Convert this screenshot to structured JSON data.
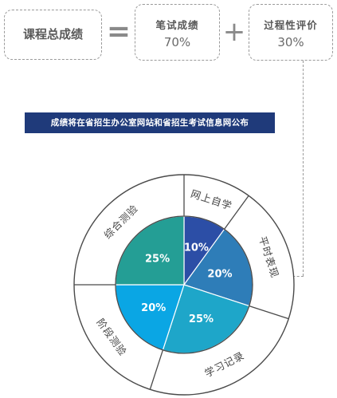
{
  "formula": {
    "total_label": "课程总成绩",
    "equals_sign": "=",
    "plus_sign": "+",
    "written": {
      "label": "笔试成绩",
      "value": "70%"
    },
    "usual": {
      "label": "过程性评价",
      "value": "30%"
    }
  },
  "banner": {
    "text": "成绩将在省招生办公室网站和省招生考试信息网公布"
  },
  "chart_data": {
    "type": "pie",
    "slices": [
      {
        "label": "网上自学",
        "value": 10,
        "value_label": "10%",
        "color": "#2c4ea6"
      },
      {
        "label": "平时表现",
        "value": 20,
        "value_label": "20%",
        "color": "#2e7db8"
      },
      {
        "label": "学习记录",
        "value": 25,
        "value_label": "25%",
        "color": "#1ea6c9"
      },
      {
        "label": "阶段测验",
        "value": 20,
        "value_label": "20%",
        "color": "#0aa6e4"
      },
      {
        "label": "综合测验",
        "value": 25,
        "value_label": "25%",
        "color": "#249e95"
      }
    ],
    "start_angle_deg": 0,
    "outer_ring": true
  }
}
